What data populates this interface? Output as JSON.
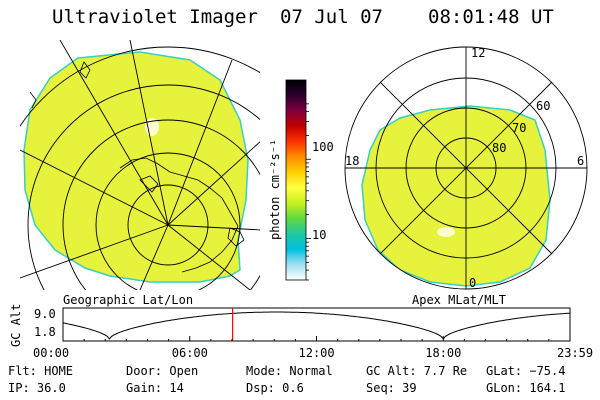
{
  "header": {
    "instrument": "Ultraviolet Imager",
    "date": "07 Jul 07",
    "time": "08:01:48 UT"
  },
  "left_map": {
    "label": "Geographic Lat/Lon"
  },
  "right_map": {
    "label": "Apex MLat/MLT",
    "mlt_labels": {
      "top": "12",
      "left": "18",
      "right": "6",
      "bottom": "0"
    },
    "lat_labels": [
      "60",
      "70",
      "80"
    ]
  },
  "colorbar": {
    "unit_label": "photon cm⁻²s⁻¹",
    "tick_labels": [
      "100",
      "10"
    ],
    "colors": [
      "#000000",
      "#2b0030",
      "#800040",
      "#c00000",
      "#ff3000",
      "#ff8c00",
      "#ffd000",
      "#ffff40",
      "#c8f020",
      "#60d840",
      "#20c8a0",
      "#00c0e0",
      "#a0e0f0",
      "#ffffff"
    ]
  },
  "altitude_plot": {
    "ylabel": "GC Alt",
    "y_ticks": [
      "9.0",
      "1.8"
    ],
    "x_ticks": [
      "00:00",
      "06:00",
      "12:00",
      "18:00",
      "23:59"
    ],
    "current_time_hours": 8.03
  },
  "footer": {
    "flt": "Flt: HOME",
    "door": "Door: Open",
    "mode": "Mode: Normal",
    "gc_alt": "GC Alt: 7.7 Re",
    "glat": "GLat: −75.4",
    "ip": "IP: 36.0",
    "gain": "Gain: 14",
    "dsp": "Dsp:    0.6",
    "seq": "Seq: 39",
    "glon": "GLon: 164.1"
  },
  "colors": {
    "aurora_fill": "#e6f23c",
    "aurora_edge": "#38d0c0",
    "time_marker": "#ff0000"
  }
}
